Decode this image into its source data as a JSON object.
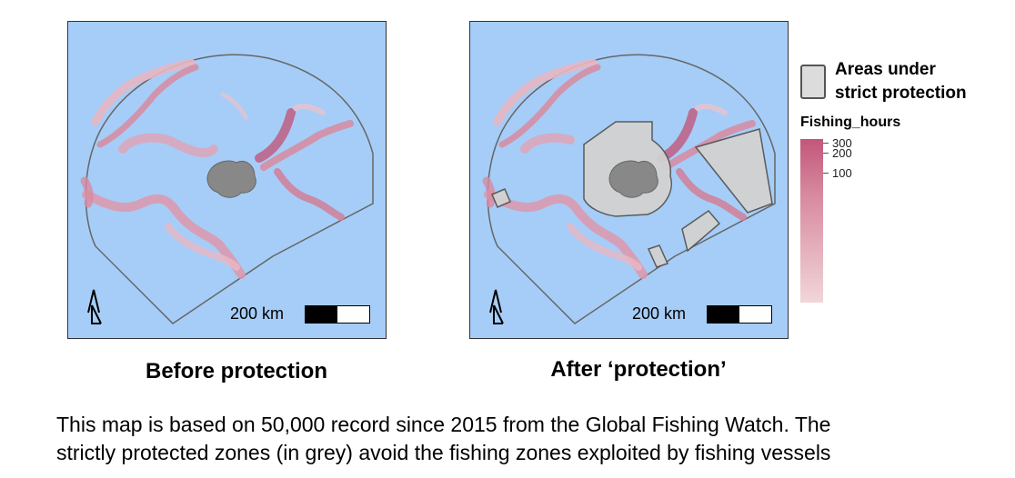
{
  "panels": [
    {
      "caption": "Before protection",
      "scale_label": "200 km"
    },
    {
      "caption": "After ‘protection’",
      "scale_label": "200 km"
    }
  ],
  "legend": {
    "protection_line1": "Areas under",
    "protection_line2": "strict protection",
    "fishing_title": "Fishing_hours",
    "ticks": [
      "300",
      "200",
      "100"
    ]
  },
  "description": {
    "line1": "This map is based on 50,000 record since 2015 from the Global Fishing Watch. The",
    "line2": "strictly protected zones (in grey) avoid the fishing zones exploited by fishing vessels"
  },
  "colors": {
    "ocean": "#a6cdf7",
    "fishing_low": "#f1d6d8",
    "fishing_high": "#c2577a",
    "protected": "#d2d2d2"
  }
}
